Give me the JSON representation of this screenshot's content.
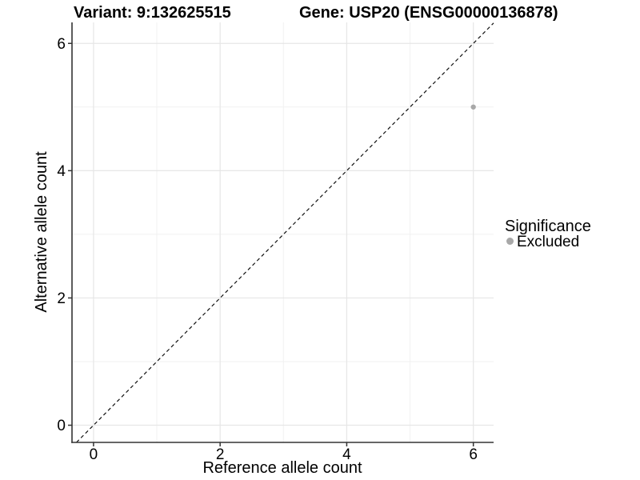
{
  "chart_data": {
    "type": "scatter",
    "titles": [
      "Variant: 9:132625515",
      "Gene: USP20 (ENSG00000136878)"
    ],
    "xlabel": "Reference allele count",
    "ylabel": "Alternative allele count",
    "xlim": [
      -0.34,
      6.32
    ],
    "ylim": [
      -0.27,
      6.33
    ],
    "x_major_ticks": [
      0,
      2,
      4,
      6
    ],
    "y_major_ticks": [
      0,
      2,
      4,
      6
    ],
    "x_minor_ticks": [
      1,
      3,
      5
    ],
    "y_minor_ticks": [
      1,
      3,
      5
    ],
    "grid": "major and minor gridlines on white panel",
    "reference_line": {
      "equation": "y = x",
      "style": "dashed",
      "color": "#111111"
    },
    "series": [
      {
        "name": "Excluded",
        "color": "#a8a8a8",
        "points": [
          [
            6,
            5
          ]
        ]
      }
    ],
    "legend": {
      "title": "Significance",
      "position": "right",
      "entries": [
        {
          "label": "Excluded",
          "color": "#a8a8a8",
          "marker": "circle"
        }
      ]
    }
  },
  "colors": {
    "axis_line": "#333333",
    "tick_mark": "#333333",
    "grid_major": "#e6e6e6",
    "grid_minor": "#f1f1f1",
    "text": "#000000",
    "background": "#ffffff"
  }
}
